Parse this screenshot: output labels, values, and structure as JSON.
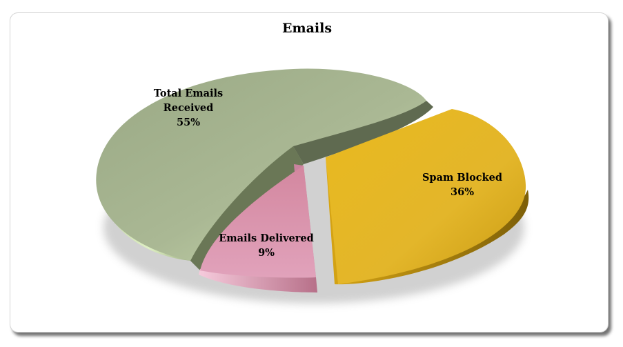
{
  "chart_data": {
    "type": "pie",
    "title": "Emails",
    "categories": [
      "Total Emails Received",
      "Spam Blocked",
      "Emails Delivered"
    ],
    "values": [
      55,
      36,
      9
    ],
    "unit": "%",
    "labels": [
      {
        "name": "Total Emails Received",
        "lines": [
          "Total Emails",
          "Received"
        ],
        "pct": "55%"
      },
      {
        "name": "Spam Blocked",
        "lines": [
          "Spam Blocked"
        ],
        "pct": "36%"
      },
      {
        "name": "Emails Delivered",
        "lines": [
          "Emails Delivered"
        ],
        "pct": "9%"
      }
    ],
    "colors": {
      "total_received": "#a3b28c",
      "spam_blocked": "#e0b21f",
      "emails_delivered": "#d68fac"
    },
    "legend": "none",
    "style": "3d-exploded"
  }
}
